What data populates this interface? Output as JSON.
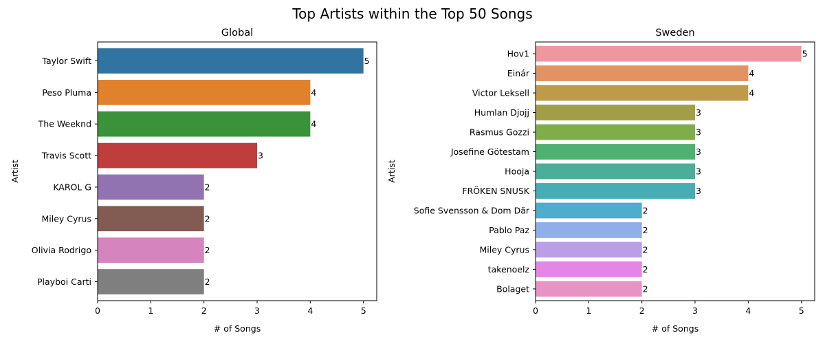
{
  "figure": {
    "title": "Top Artists within the Top 50 Songs"
  },
  "chart_data": [
    {
      "type": "bar",
      "orientation": "horizontal",
      "title": "Global",
      "xlabel": "# of Songs",
      "ylabel": "Artist",
      "xlim": [
        0,
        5.25
      ],
      "xticks": [
        0,
        1,
        2,
        3,
        4,
        5
      ],
      "grid": false,
      "legend": "none",
      "categories": [
        "Taylor Swift",
        "Peso Pluma",
        "The Weeknd",
        "Travis Scott",
        "KAROL G",
        "Miley Cyrus",
        "Olivia Rodrigo",
        "Playboi Carti"
      ],
      "values": [
        5,
        4,
        4,
        3,
        2,
        2,
        2,
        2
      ],
      "colors": [
        "#3274a1",
        "#e1812c",
        "#3a923a",
        "#c03d3e",
        "#9372b2",
        "#845b53",
        "#d684bd",
        "#7f7f7f"
      ]
    },
    {
      "type": "bar",
      "orientation": "horizontal",
      "title": "Sweden",
      "xlabel": "# of Songs",
      "ylabel": "Artist",
      "xlim": [
        0,
        5.25
      ],
      "xticks": [
        0,
        1,
        2,
        3,
        4,
        5
      ],
      "grid": false,
      "legend": "none",
      "categories": [
        "Hov1",
        "Einár",
        "Victor Leksell",
        "Humlan Djojj",
        "Rasmus Gozzi",
        "Josefine Götestam",
        "Hooja",
        "FRÖKEN SNUSK",
        "Sofie Svensson & Dom Där",
        "Pablo Paz",
        "Miley Cyrus",
        "takenoelz",
        "Bolaget"
      ],
      "values": [
        5,
        4,
        4,
        3,
        3,
        3,
        3,
        3,
        2,
        2,
        2,
        2,
        2
      ],
      "colors": [
        "#ee979e",
        "#e39363",
        "#bf9b49",
        "#a09e46",
        "#7ead4a",
        "#4db271",
        "#4bae98",
        "#45adb4",
        "#4eaccd",
        "#90aee8",
        "#bc9ee8",
        "#e586e6",
        "#e893c6"
      ]
    }
  ]
}
